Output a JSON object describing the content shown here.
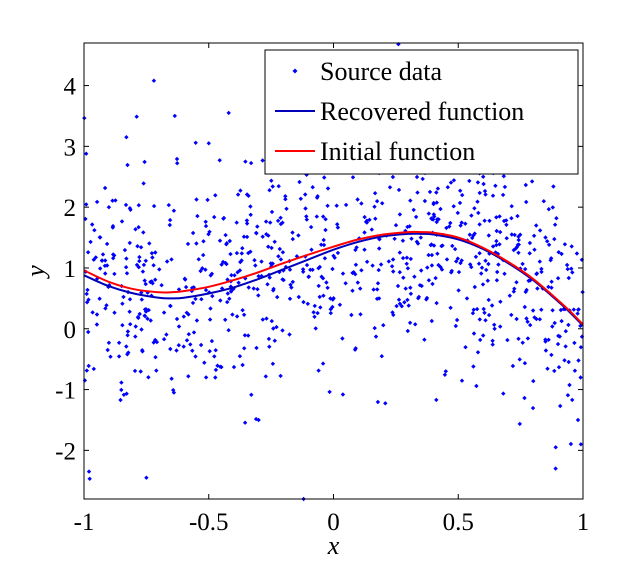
{
  "chart_data": {
    "type": "scatter",
    "title": "",
    "xlabel": "x",
    "ylabel": "y",
    "xlim": [
      -1,
      1
    ],
    "ylim": [
      -2.8,
      4.7
    ],
    "grid": false,
    "legend_position": "top-right",
    "x_ticks": [
      -1,
      -0.5,
      0,
      0.5,
      1
    ],
    "x_tick_labels": [
      "-1",
      "-0.5",
      "0",
      "0.5",
      "1"
    ],
    "y_ticks": [
      -2,
      -1,
      0,
      1,
      2,
      3,
      4
    ],
    "y_tick_labels": [
      "-2",
      "-1",
      "0",
      "1",
      "2",
      "3",
      "4"
    ],
    "series": [
      {
        "name": "Source data",
        "kind": "scatter",
        "color": "#0000ff",
        "num_points": 900,
        "sample_points": [
          [
            -0.98,
            -2.35
          ],
          [
            -0.75,
            -2.45
          ],
          [
            -0.72,
            4.08
          ],
          [
            -0.42,
            3.55
          ],
          [
            -0.83,
            3.15
          ],
          [
            -0.5,
            3.05
          ],
          [
            -0.12,
            -2.8
          ],
          [
            0.26,
            4.68
          ],
          [
            0.89,
            -2.3
          ],
          [
            0.98,
            -1.5
          ],
          [
            -0.9,
            2.0
          ],
          [
            -0.3,
            -1.5
          ],
          [
            0.1,
            2.9
          ],
          [
            0.6,
            2.5
          ],
          [
            0.45,
            -0.7
          ],
          [
            -0.6,
            0.2
          ],
          [
            0.0,
            1.2
          ],
          [
            0.35,
            1.5
          ],
          [
            0.8,
            0.3
          ],
          [
            -0.2,
            0.8
          ]
        ]
      },
      {
        "name": "Recovered function",
        "kind": "line",
        "color": "#0000bb",
        "x": [
          -1.0,
          -0.9,
          -0.8,
          -0.7,
          -0.65,
          -0.6,
          -0.5,
          -0.4,
          -0.3,
          -0.2,
          -0.1,
          0.0,
          0.1,
          0.2,
          0.3,
          0.35,
          0.4,
          0.5,
          0.6,
          0.7,
          0.8,
          0.9,
          0.95,
          1.0
        ],
        "y": [
          0.88,
          0.7,
          0.58,
          0.51,
          0.5,
          0.51,
          0.58,
          0.68,
          0.82,
          0.98,
          1.14,
          1.3,
          1.43,
          1.52,
          1.56,
          1.56,
          1.55,
          1.47,
          1.31,
          1.08,
          0.8,
          0.45,
          0.26,
          0.05
        ]
      },
      {
        "name": "Initial function",
        "kind": "line",
        "color": "#ff0000",
        "x": [
          -1.0,
          -0.9,
          -0.8,
          -0.7,
          -0.65,
          -0.6,
          -0.5,
          -0.4,
          -0.3,
          -0.2,
          -0.1,
          0.0,
          0.1,
          0.2,
          0.3,
          0.35,
          0.4,
          0.5,
          0.6,
          0.7,
          0.8,
          0.9,
          0.95,
          1.0
        ],
        "y": [
          0.96,
          0.77,
          0.65,
          0.6,
          0.6,
          0.62,
          0.69,
          0.8,
          0.93,
          1.08,
          1.22,
          1.35,
          1.47,
          1.55,
          1.59,
          1.59,
          1.58,
          1.5,
          1.33,
          1.1,
          0.82,
          0.47,
          0.28,
          0.07
        ]
      }
    ]
  }
}
